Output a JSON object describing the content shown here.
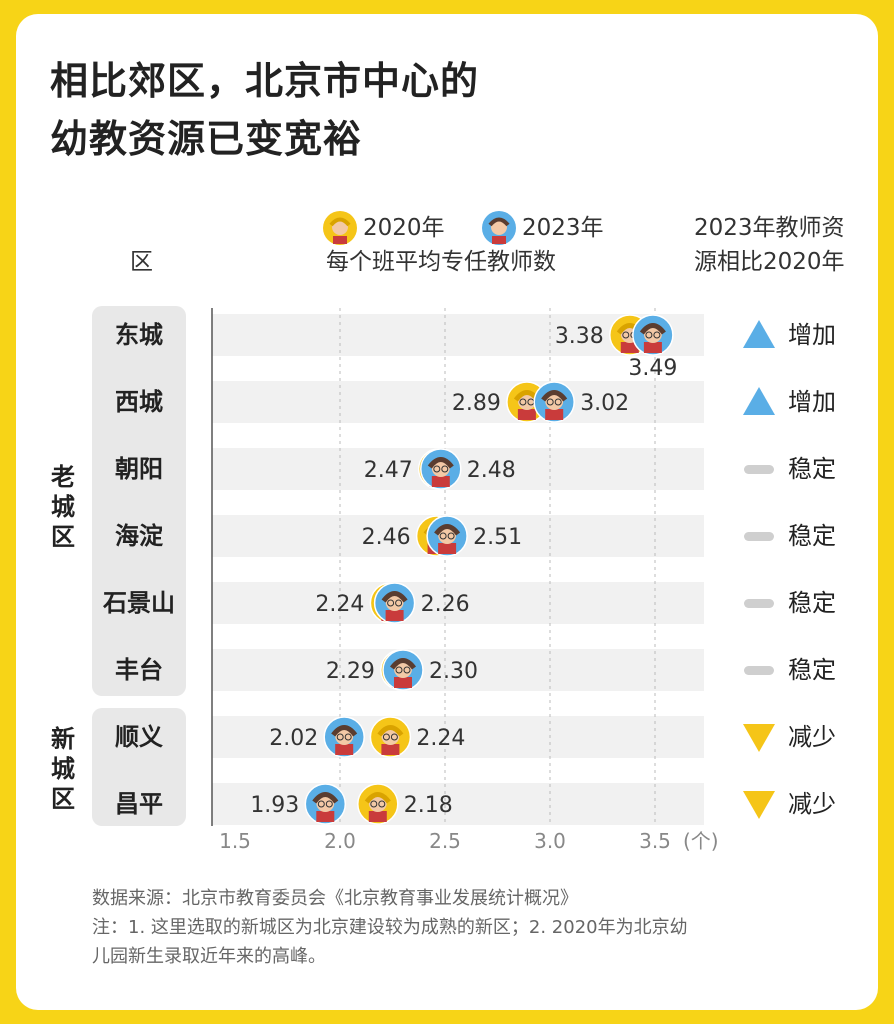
{
  "title_lines": [
    "相比郊区，北京市中心的",
    "幼教资源已变宽裕"
  ],
  "headers": {
    "district": "区",
    "y2020": "2020年",
    "y2023": "2023年",
    "metric": "每个班平均专任教师数",
    "change_l1": "2023年教师资",
    "change_l2": "源相比2020年"
  },
  "groups": {
    "old_city": "老城区",
    "new_city": "新城区"
  },
  "colors": {
    "y2020": "#f5c518",
    "y2023": "#5aaee6",
    "increase": "#5aaee6",
    "stable": "#cfcfcf",
    "decrease": "#f5c518"
  },
  "chart_data": {
    "type": "scatter",
    "title": "相比郊区，北京市中心的幼教资源已变宽裕",
    "xlim": [
      1.5,
      3.5
    ],
    "x_ticks": [
      "1.5",
      "2.0",
      "2.5",
      "3.0",
      "3.5"
    ],
    "x_unit": "(个)",
    "grid": true,
    "categories": [
      "东城",
      "西城",
      "朝阳",
      "海淀",
      "石景山",
      "丰台",
      "顺义",
      "昌平"
    ],
    "series": [
      {
        "name": "2020年",
        "values": [
          3.38,
          2.89,
          2.47,
          2.46,
          2.24,
          2.29,
          2.24,
          2.18
        ]
      },
      {
        "name": "2023年",
        "values": [
          3.49,
          3.02,
          2.48,
          2.51,
          2.26,
          2.3,
          2.02,
          1.93
        ]
      }
    ],
    "change_labels": [
      "增加",
      "增加",
      "稳定",
      "稳定",
      "稳定",
      "稳定",
      "减少",
      "减少"
    ],
    "change_types": [
      "increase",
      "increase",
      "stable",
      "stable",
      "stable",
      "stable",
      "decrease",
      "decrease"
    ]
  },
  "source_lines": [
    "数据来源：北京市教育委员会《北京教育事业发展统计概况》",
    "注：1. 这里选取的新城区为北京建设较为成熟的新区；2. 2020年为北京幼",
    "儿园新生录取近年来的高峰。"
  ]
}
